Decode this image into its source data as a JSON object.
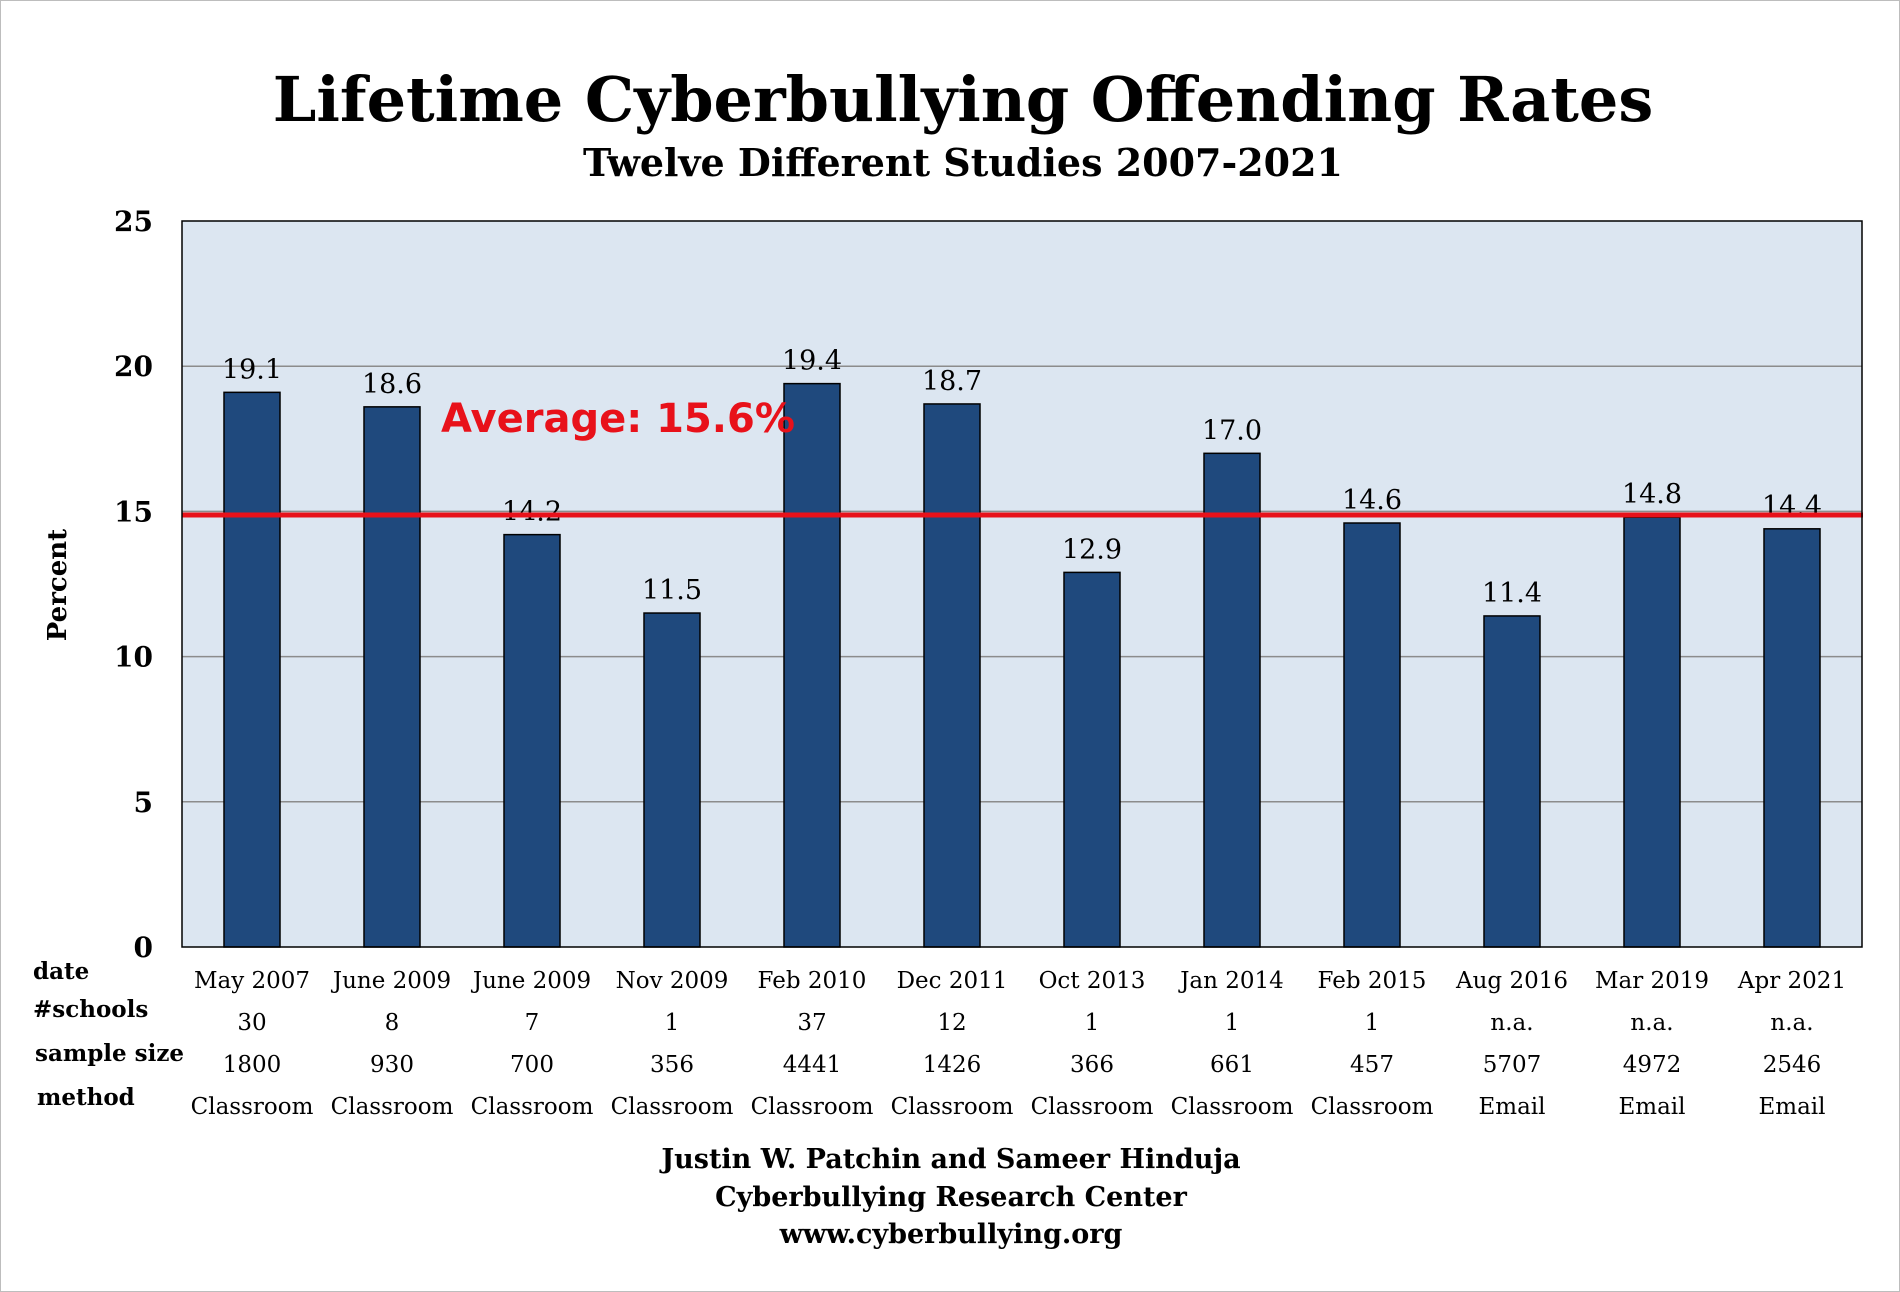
{
  "chart_data": {
    "type": "bar",
    "title": "Lifetime Cyberbullying Offending Rates",
    "subtitle": "Twelve Different Studies 2007-2021",
    "ylabel": "Percent",
    "ylim": [
      0,
      25
    ],
    "yticks": [
      0,
      5,
      10,
      15,
      20,
      25
    ],
    "grid": true,
    "categories": [
      "May 2007",
      "June 2009",
      "June 2009",
      "Nov 2009",
      "Feb 2010",
      "Dec 2011",
      "Oct 2013",
      "Jan 2014",
      "Feb 2015",
      "Aug 2016",
      "Mar 2019",
      "Apr 2021"
    ],
    "values": [
      19.1,
      18.6,
      14.2,
      11.5,
      19.4,
      18.7,
      12.9,
      17.0,
      14.6,
      11.4,
      14.8,
      14.4
    ],
    "value_labels": [
      "19.1",
      "18.6",
      "14.2",
      "11.5",
      "19.4",
      "18.7",
      "12.9",
      "17.0",
      "14.6",
      "11.4",
      "14.8",
      "14.4"
    ],
    "average": {
      "value": 15.6,
      "label": "Average: 15.6%",
      "color": "#e8111a"
    },
    "table": {
      "row_headers": [
        "date",
        "#schools",
        "sample size",
        "method"
      ],
      "schools": [
        "30",
        "8",
        "7",
        "1",
        "37",
        "12",
        "1",
        "1",
        "1",
        "n.a.",
        "n.a.",
        "n.a."
      ],
      "sample_size": [
        "1800",
        "930",
        "700",
        "356",
        "4441",
        "1426",
        "366",
        "661",
        "457",
        "5707",
        "4972",
        "2546"
      ],
      "method": [
        "Classroom",
        "Classroom",
        "Classroom",
        "Classroom",
        "Classroom",
        "Classroom",
        "Classroom",
        "Classroom",
        "Classroom",
        "Email",
        "Email",
        "Email"
      ]
    },
    "colors": {
      "bar": "#1f497d",
      "plot_bg": "#dce6f1",
      "grid": "#8c8c8c"
    }
  },
  "credits": [
    "Justin W. Patchin and Sameer Hinduja",
    "Cyberbullying Research Center",
    "www.cyberbullying.org"
  ]
}
